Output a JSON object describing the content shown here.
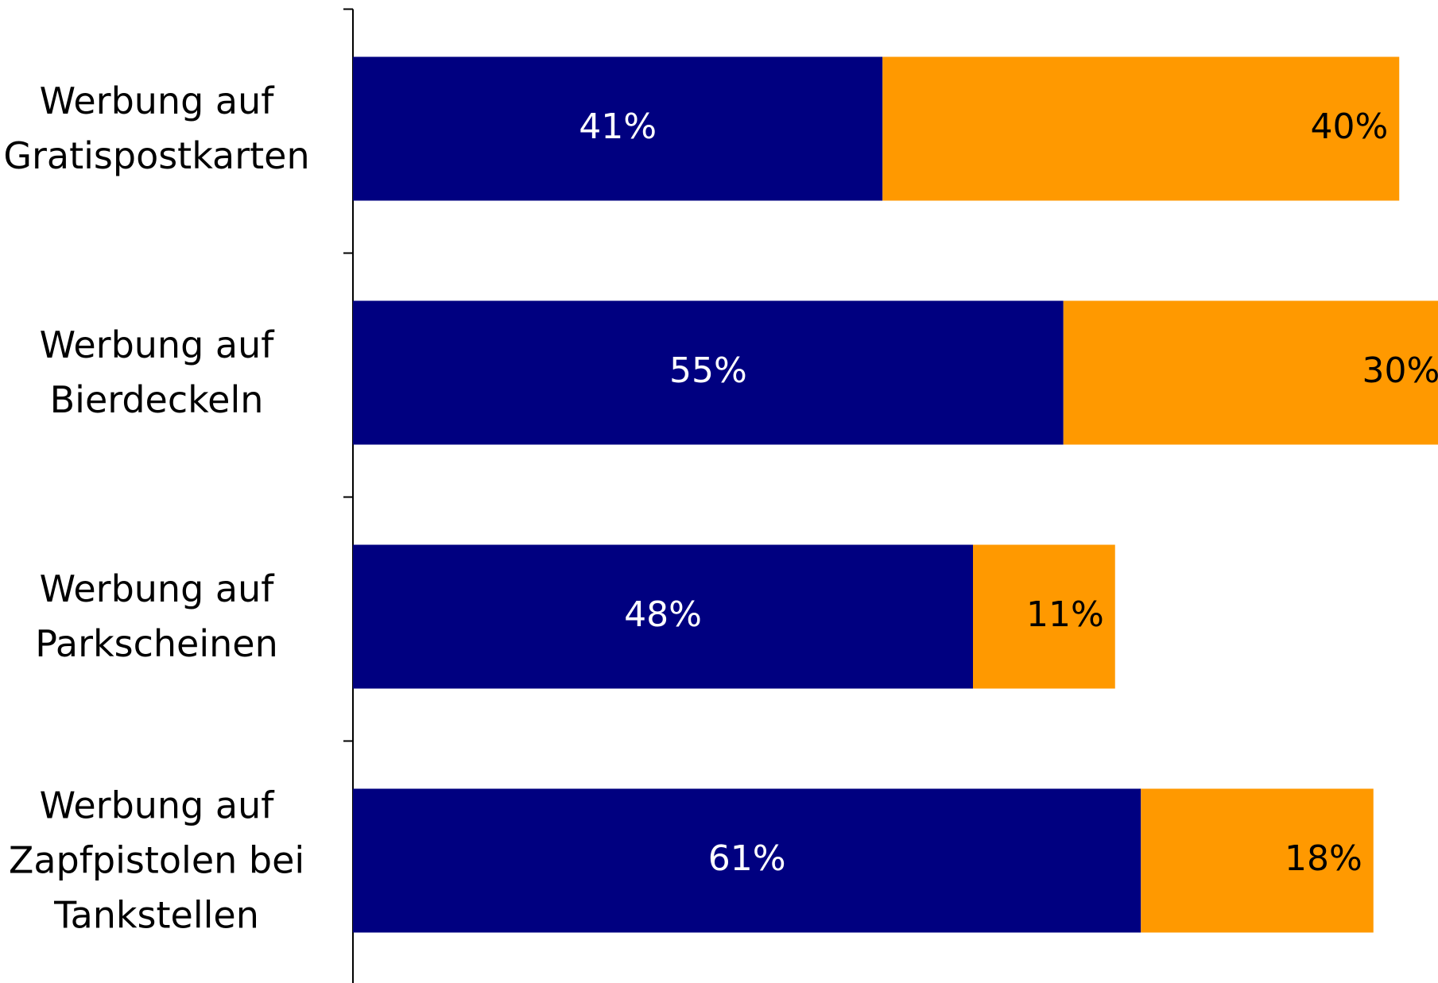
{
  "chart_data": {
    "type": "stacked-barh",
    "categories": [
      "Werbung auf\nGratispostkarten",
      "Werbung auf\nBierdeckeln",
      "Werbung auf\nParkscheinen",
      "Werbung auf\nZapfpistolen bei\nTankstellen"
    ],
    "series": [
      {
        "color": "#000080",
        "values": [
          41,
          55,
          48,
          61
        ],
        "value_labels": [
          "41%",
          "55%",
          "48%",
          "61%"
        ]
      },
      {
        "color": "#FF9900",
        "values": [
          40,
          30,
          11,
          18
        ],
        "value_labels": [
          "40%",
          "30%",
          "11%",
          "18%"
        ]
      }
    ],
    "xlim": [
      0,
      84
    ]
  }
}
